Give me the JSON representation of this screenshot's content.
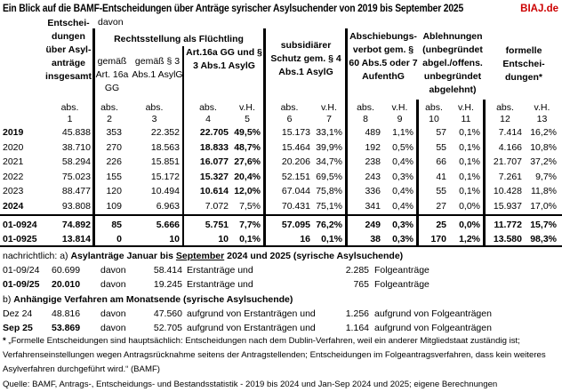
{
  "title": "Ein Blick auf die BAMF-Entscheidungen über Anträge syrischer Asylsuchender von 2019 bis September 2025",
  "brand": "BIAJ.de",
  "headers": {
    "c1": "Entschei-dungen über Asyl-anträge insgesamt",
    "davon": "davon",
    "refugee": "Rechtsstellung als Flüchtling",
    "c2": "gemäß Art. 16a GG",
    "c3": "gemäß § 3 Abs.1 AsylG",
    "c45": "Art.16a GG und § 3 Abs.1 AsylG",
    "c67": "subsidiärer Schutz gem. § 4 Abs.1 AsylG",
    "c89": "Abschiebungs-verbot gem. § 60 Abs.5 oder 7 AufenthG",
    "c1011": "Ablehnungen (unbegründet abgel./offens. unbegründet abgelehnt)",
    "c1213": "formelle Entschei-dungen*",
    "units": [
      "abs.",
      "abs.",
      "abs.",
      "abs.",
      "v.H.",
      "abs.",
      "v.H.",
      "abs.",
      "v.H.",
      "abs.",
      "v.H.",
      "abs.",
      "v.H."
    ],
    "numbers": [
      "1",
      "2",
      "3",
      "4",
      "5",
      "6",
      "7",
      "8",
      "9",
      "10",
      "11",
      "12",
      "13"
    ]
  },
  "rows": [
    {
      "label": "2019",
      "cells": [
        "45.838",
        "353",
        "22.352",
        "22.705",
        "49,5%",
        "15.173",
        "33,1%",
        "489",
        "1,1%",
        "57",
        "0,1%",
        "7.414",
        "16,2%"
      ]
    },
    {
      "label": "2020",
      "cells": [
        "38.710",
        "270",
        "18.563",
        "18.833",
        "48,7%",
        "15.464",
        "39,9%",
        "192",
        "0,5%",
        "55",
        "0,1%",
        "4.166",
        "10,8%"
      ]
    },
    {
      "label": "2021",
      "cells": [
        "58.294",
        "226",
        "15.851",
        "16.077",
        "27,6%",
        "20.206",
        "34,7%",
        "238",
        "0,4%",
        "66",
        "0,1%",
        "21.707",
        "37,2%"
      ]
    },
    {
      "label": "2022",
      "cells": [
        "75.023",
        "155",
        "15.172",
        "15.327",
        "20,4%",
        "52.151",
        "69,5%",
        "243",
        "0,3%",
        "41",
        "0,1%",
        "7.261",
        "9,7%"
      ]
    },
    {
      "label": "2023",
      "cells": [
        "88.477",
        "120",
        "10.494",
        "10.614",
        "12,0%",
        "67.044",
        "75,8%",
        "336",
        "0,4%",
        "55",
        "0,1%",
        "10.428",
        "11,8%"
      ]
    },
    {
      "label": "2024",
      "cells": [
        "93.808",
        "109",
        "6.963",
        "7.072",
        "7,5%",
        "70.431",
        "75,1%",
        "341",
        "0,4%",
        "27",
        "0,0%",
        "15.937",
        "17,0%"
      ]
    }
  ],
  "totals": [
    {
      "label": "01-0924",
      "cells": [
        "74.892",
        "85",
        "5.666",
        "5.751",
        "7,7%",
        "57.095",
        "76,2%",
        "249",
        "0,3%",
        "25",
        "0,0%",
        "11.772",
        "15,7%"
      ]
    },
    {
      "label": "01-0925",
      "cells": [
        "13.814",
        "0",
        "10",
        "10",
        "0,1%",
        "16",
        "0,1%",
        "38",
        "0,3%",
        "170",
        "1,2%",
        "13.580",
        "98,3%"
      ]
    }
  ],
  "notes": {
    "prefix": "nachrichtlich:  a) ",
    "a_title_1": "Asylanträge Januar bis ",
    "a_title_u": "September",
    "a_title_2": " 2024 und 2025 (syrische Asylsuchende)",
    "a_rows": [
      {
        "label": "01-09/24",
        "total": "60.699",
        "davon": "davon",
        "first": "58.414",
        "first_text": "Erstanträge und",
        "follow": "2.285",
        "follow_text": "Folgeanträge"
      },
      {
        "label": "01-09/25",
        "total": "20.010",
        "davon": "davon",
        "first": "19.245",
        "first_text": "Erstanträge und",
        "follow": "765",
        "follow_text": "Folgeanträge"
      }
    ],
    "b_prefix": "b) ",
    "b_title": "Anhängige Verfahren am Monatsende (syrische Asylsuchende)",
    "b_rows": [
      {
        "label": "Dez 24",
        "total": "48.816",
        "davon": "davon",
        "first": "47.560",
        "first_text": "aufgrund von Erstanträgen und",
        "follow": "1.256",
        "follow_text": "aufgrund von Folgeanträgen"
      },
      {
        "label": "Sep 25",
        "total": "53.869",
        "davon": "davon",
        "first": "52.705",
        "first_text": "aufgrund von Erstanträgen und",
        "follow": "1.164",
        "follow_text": "aufgrund von Folgeanträgen"
      }
    ]
  },
  "footnote": "„Formelle Entscheidungen sind hauptsächlich: Entscheidungen nach dem Dublin-Verfahren, weil ein anderer Mitgliedstaat zuständig ist; Verfahrenseinstellungen wegen Antragsrücknahme seitens der Antragstellenden; Entscheidungen im Folgeantragsverfahren, dass kein weiteres Asylverfahren durchgeführt wird.“ (BAMF)",
  "footnote_mark": "*",
  "source": "Quelle: BAMF, Antrags-, Entscheidungs- und Bestandsstatistik -  2019 bis 2024 und Jan-Sep 2024 und 2025; eigene Berechnungen"
}
